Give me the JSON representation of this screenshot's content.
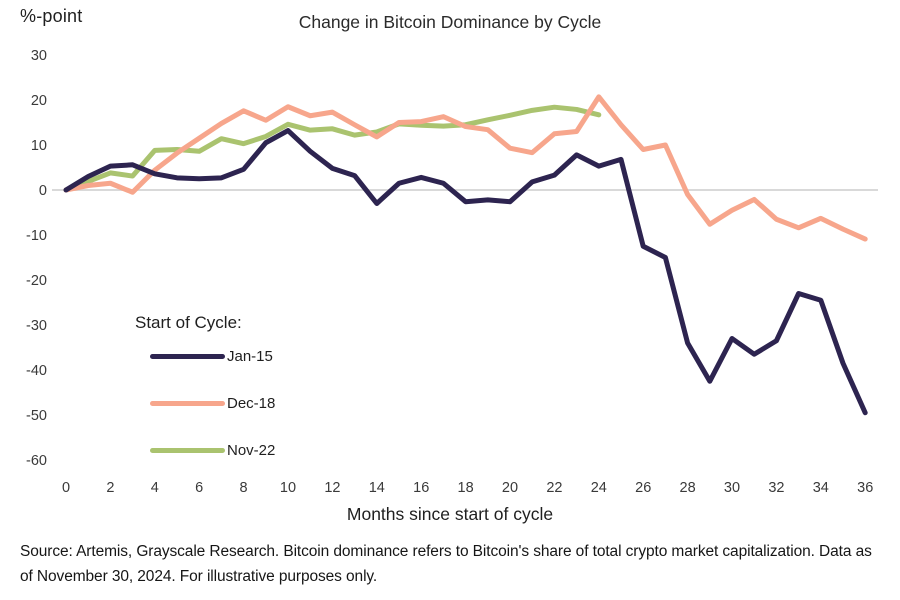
{
  "header": {
    "y_axis_unit": "%-point"
  },
  "chart_data": {
    "type": "line",
    "title": "Change in Bitcoin Dominance by Cycle",
    "ylabel": "%-point",
    "xlabel": "Months since start of cycle",
    "xlim": [
      0,
      36
    ],
    "ylim": [
      -60,
      30
    ],
    "x_ticks": [
      0,
      2,
      4,
      6,
      8,
      10,
      12,
      14,
      16,
      18,
      20,
      22,
      24,
      26,
      28,
      30,
      32,
      34,
      36
    ],
    "y_ticks": [
      30,
      20,
      10,
      0,
      -10,
      -20,
      -30,
      -40,
      -50,
      -60
    ],
    "grid": "zero-baseline-only",
    "zero_line_color": "#d9d9d9",
    "legend_title": "Start of Cycle:",
    "legend_position": "inside-middle-left",
    "x": [
      0,
      1,
      2,
      3,
      4,
      5,
      6,
      7,
      8,
      9,
      10,
      11,
      12,
      13,
      14,
      15,
      16,
      17,
      18,
      19,
      20,
      21,
      22,
      23,
      24,
      25,
      26,
      27,
      28,
      29,
      30,
      31,
      32,
      33,
      34,
      35,
      36
    ],
    "series": [
      {
        "name": "Jan-15",
        "color": "#2d2450",
        "values": [
          0,
          3,
          5.3,
          5.6,
          3.6,
          2.7,
          2.5,
          2.7,
          4.6,
          10.5,
          13.2,
          8.6,
          4.8,
          3.2,
          -3,
          1.5,
          2.8,
          1.5,
          -2.6,
          -2.2,
          -2.6,
          1.8,
          3.3,
          7.8,
          5.3,
          6.8,
          -12.5,
          -15,
          -34,
          -42.5,
          -33,
          -36.5,
          -33.5,
          -23,
          -24.5,
          -38.5,
          -49.5
        ]
      },
      {
        "name": "Dec-18",
        "color": "#f7a68c",
        "values": [
          0,
          1,
          1.5,
          -0.5,
          4.4,
          8.2,
          11.5,
          14.8,
          17.6,
          15.5,
          18.5,
          16.5,
          17.3,
          14.5,
          11.8,
          15,
          15.2,
          16.3,
          14.1,
          13.4,
          9.3,
          8.3,
          12.5,
          13,
          20.7,
          14.5,
          9,
          10,
          -1,
          -7.6,
          -4.5,
          -2.1,
          -6.5,
          -8.4,
          -6.3,
          -8.7,
          -10.9
        ]
      },
      {
        "name": "Nov-22",
        "color": "#aac36f",
        "values": [
          0,
          1.9,
          3.8,
          3.1,
          8.8,
          9,
          8.6,
          11.4,
          10.3,
          11.9,
          14.6,
          13.3,
          13.6,
          12.2,
          12.9,
          14.7,
          14.4,
          14.2,
          14.5,
          15.6,
          16.6,
          17.7,
          18.4,
          17.9,
          16.7
        ]
      }
    ]
  },
  "footer": {
    "source_text": "Source: Artemis, Grayscale Research. Bitcoin dominance refers to Bitcoin's share of total crypto market capitalization. Data as of November 30, 2024. For illustrative purposes only."
  }
}
